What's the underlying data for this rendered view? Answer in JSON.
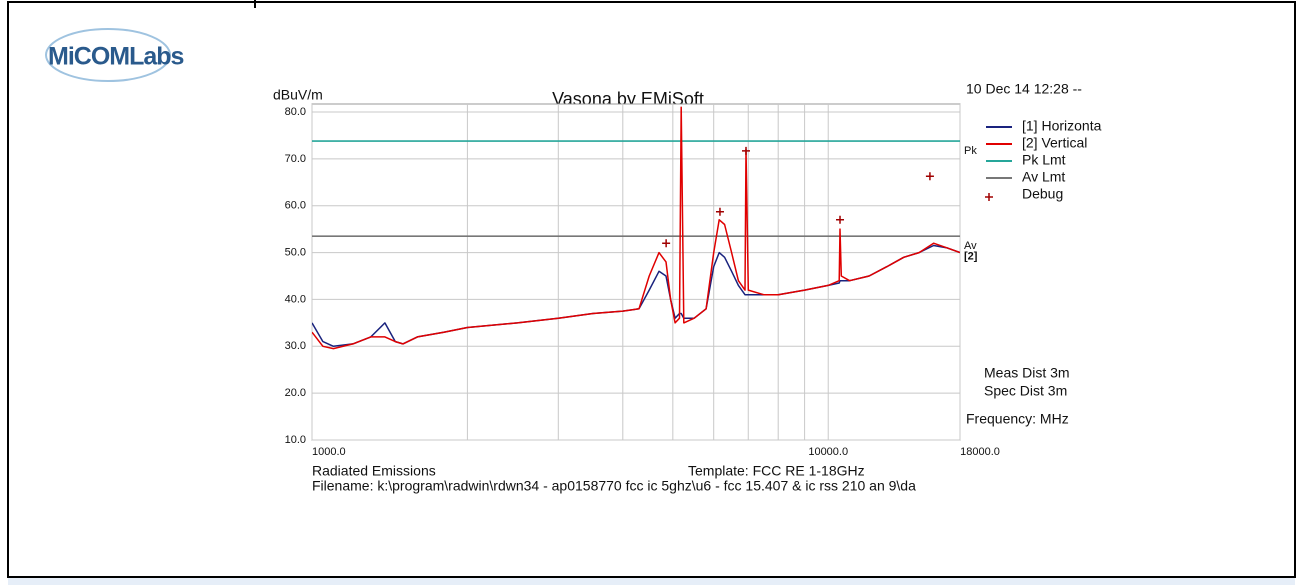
{
  "logo": "MiCOMLabs",
  "chart_data": {
    "type": "line",
    "title": "Vasona by EMiSoft",
    "timestamp": "10 Dec 14 12:28 --",
    "y_label": "dBuV/m",
    "x_note": "Frequency: MHz",
    "notes": [
      "Meas Dist 3m",
      "Spec Dist 3m"
    ],
    "footer": {
      "left": "Radiated Emissions",
      "template": "Template: FCC RE 1-18GHz",
      "filename": "Filename: k:\\program\\radwin\\rdwn34 - ap0158770 fcc ic 5ghz\\u6 - fcc 15.407 & ic rss 210 an 9\\da"
    },
    "log_x": true,
    "grid": true,
    "xlim": [
      1000,
      18000
    ],
    "ylim": [
      10,
      80
    ],
    "xticks": [
      {
        "value": 1000,
        "label": "1000.0"
      },
      {
        "value": 10000,
        "label": "10000.0"
      },
      {
        "value": 18000,
        "label": "18000.0"
      }
    ],
    "xgrid": [
      2000,
      3000,
      4000,
      5000,
      6000,
      7000,
      8000,
      9000
    ],
    "yticks": [
      {
        "value": 10,
        "label": "10.0"
      },
      {
        "value": 20,
        "label": "20.0"
      },
      {
        "value": 30,
        "label": "30.0"
      },
      {
        "value": 40,
        "label": "40.0"
      },
      {
        "value": 50,
        "label": "50.0"
      },
      {
        "value": 60,
        "label": "60.0"
      },
      {
        "value": 70,
        "label": "70.0"
      },
      {
        "value": 80,
        "label": "80.0"
      }
    ],
    "x": [
      1000,
      1050,
      1100,
      1200,
      1300,
      1384,
      1450,
      1500,
      1600,
      1800,
      2000,
      2500,
      3000,
      3500,
      4000,
      4300,
      4500,
      4700,
      4850,
      4950,
      5050,
      5150,
      5190,
      5250,
      5500,
      5800,
      6000,
      6150,
      6300,
      6500,
      6700,
      6900,
      6930,
      7000,
      7500,
      8000,
      9000,
      10000,
      10500,
      10540,
      10600,
      11000,
      12000,
      13000,
      14000,
      15000,
      16000,
      17000,
      18000
    ],
    "series": [
      {
        "name": "[1] Horizonta",
        "color": "#1a237e",
        "values": [
          35,
          31,
          30,
          30.5,
          32,
          35,
          31,
          30.5,
          32,
          33,
          34,
          35,
          36,
          37,
          37.5,
          38,
          42,
          46,
          45,
          40,
          36,
          37,
          37,
          36,
          36,
          38,
          47,
          50,
          49,
          46,
          43,
          41,
          41,
          41,
          41,
          41,
          42,
          43,
          43.5,
          44,
          44,
          44,
          45,
          47,
          49,
          50,
          51.5,
          51,
          50
        ]
      },
      {
        "name": "[2] Vertical",
        "color": "#e00000",
        "values": [
          33,
          30,
          29.5,
          30.5,
          32,
          32,
          31,
          30.5,
          32,
          33,
          34,
          35,
          36,
          37,
          37.5,
          38,
          45,
          50,
          48,
          40,
          35,
          36,
          81,
          35,
          36,
          38,
          50,
          57,
          56,
          50,
          44,
          42,
          72,
          42,
          41,
          41,
          42,
          43,
          44,
          55,
          45,
          44,
          45,
          47,
          49,
          50,
          52,
          51,
          50
        ]
      }
    ],
    "limits": [
      {
        "name": "Pk Lmt",
        "label": "Pk",
        "color": "#26a69a",
        "value": 73.8
      },
      {
        "name": "Av Lmt",
        "label": "Av",
        "color": "#777777",
        "value": 53.5
      }
    ],
    "end_label": "[2]",
    "markers": {
      "name": "Debug",
      "color": "#a00000",
      "x": [
        4853,
        6170,
        6930,
        10540,
        15740
      ],
      "values": [
        52,
        58.7,
        71.7,
        57,
        66.3
      ]
    }
  }
}
